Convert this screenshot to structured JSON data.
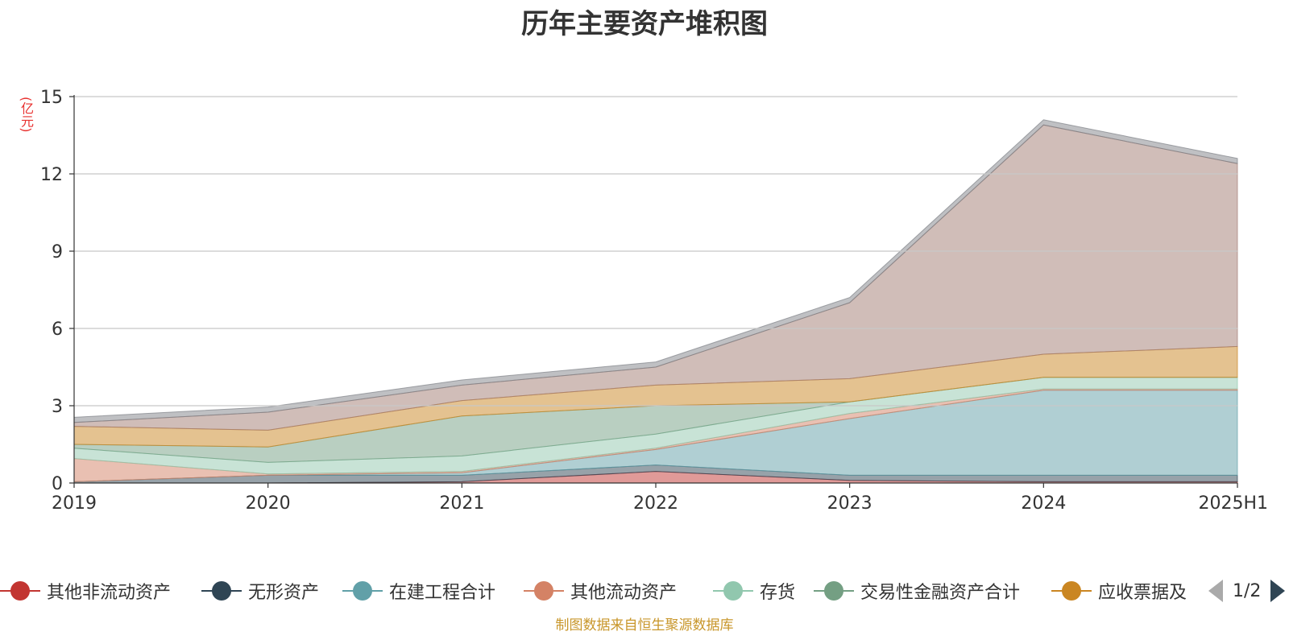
{
  "title": "历年主要资产堆积图",
  "unit_label": "(亿元)",
  "source": "制图数据来自恒生聚源数据库",
  "legend_pager": {
    "text": "1/2",
    "prev_icon": "triangle-left-icon",
    "next_icon": "triangle-right-icon"
  },
  "chart_data": {
    "type": "area",
    "stacked": true,
    "title": "历年主要资产堆积图",
    "ylabel": "(亿元)",
    "x": [
      "2019",
      "2020",
      "2021",
      "2022",
      "2023",
      "2024",
      "2025H1"
    ],
    "ylim": [
      0,
      15
    ],
    "yticks": [
      0,
      3,
      6,
      9,
      12,
      15
    ],
    "grid": true,
    "legend_position": "bottom",
    "series": [
      {
        "name": "其他非流动资产",
        "color": "#c23531",
        "values": [
          0.0,
          0.0,
          0.05,
          0.45,
          0.1,
          0.05,
          0.05
        ]
      },
      {
        "name": "无形资产",
        "color": "#2f4554",
        "values": [
          0.05,
          0.3,
          0.25,
          0.25,
          0.2,
          0.25,
          0.25
        ]
      },
      {
        "name": "在建工程合计",
        "color": "#61a0a8",
        "values": [
          0.0,
          0.0,
          0.1,
          0.6,
          2.2,
          3.3,
          3.3
        ]
      },
      {
        "name": "其他流动资产",
        "color": "#d48265",
        "values": [
          0.9,
          0.05,
          0.05,
          0.05,
          0.2,
          0.05,
          0.05
        ]
      },
      {
        "name": "存货",
        "color": "#91c7ae",
        "values": [
          0.4,
          0.45,
          0.6,
          0.55,
          0.45,
          0.45,
          0.45
        ]
      },
      {
        "name": "交易性金融资产合计",
        "color": "#749f83",
        "values": [
          0.15,
          0.6,
          1.55,
          1.1,
          0.0,
          0.0,
          0.0
        ]
      },
      {
        "name": "应收票据及",
        "color": "#ca8622",
        "values": [
          0.7,
          0.65,
          0.6,
          0.8,
          0.9,
          0.9,
          1.2
        ]
      },
      {
        "name": "",
        "color": "#a27c72",
        "values": [
          0.15,
          0.7,
          0.6,
          0.7,
          2.95,
          8.9,
          7.1
        ]
      },
      {
        "name": "",
        "color": "#7f8287",
        "values": [
          0.2,
          0.2,
          0.2,
          0.2,
          0.2,
          0.2,
          0.2
        ]
      }
    ]
  }
}
